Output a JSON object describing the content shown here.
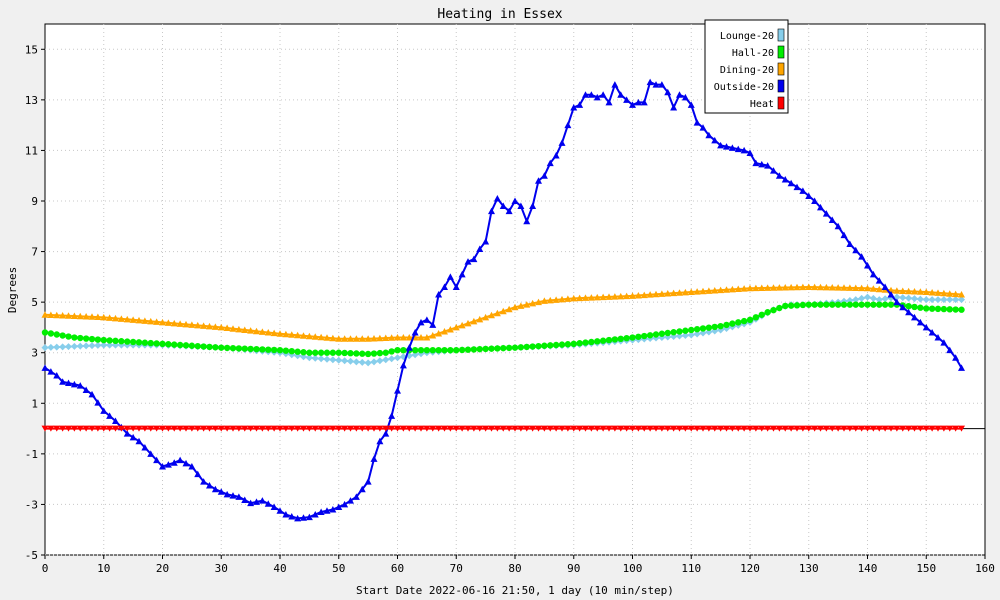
{
  "chart_data": {
    "type": "line",
    "title": "Heating in Essex",
    "xlabel": "Start Date 2022-06-16 21:50, 1 day (10 min/step)",
    "ylabel": "Degrees",
    "xlim": [
      0,
      160
    ],
    "ylim": [
      -5,
      16
    ],
    "x_ticks": [
      0,
      10,
      20,
      30,
      40,
      50,
      60,
      70,
      80,
      90,
      100,
      110,
      120,
      130,
      140,
      150,
      160
    ],
    "y_ticks": [
      -5,
      -3,
      -1,
      1,
      3,
      5,
      7,
      9,
      11,
      13,
      15
    ],
    "grid": true,
    "legend_position": "top-right",
    "series": [
      {
        "name": "Lounge-20",
        "color": "#87ceeb",
        "marker": "diamond",
        "points": [
          [
            0,
            3.2
          ],
          [
            5,
            3.25
          ],
          [
            10,
            3.3
          ],
          [
            20,
            3.3
          ],
          [
            30,
            3.2
          ],
          [
            40,
            3.0
          ],
          [
            45,
            2.8
          ],
          [
            50,
            2.7
          ],
          [
            55,
            2.6
          ],
          [
            60,
            2.8
          ],
          [
            65,
            3.0
          ],
          [
            70,
            3.1
          ],
          [
            80,
            3.2
          ],
          [
            90,
            3.3
          ],
          [
            100,
            3.5
          ],
          [
            110,
            3.7
          ],
          [
            115,
            3.9
          ],
          [
            120,
            4.2
          ],
          [
            124,
            4.7
          ],
          [
            127,
            4.9
          ],
          [
            130,
            4.9
          ],
          [
            135,
            5.0
          ],
          [
            138,
            5.1
          ],
          [
            140,
            5.2
          ],
          [
            142,
            5.1
          ],
          [
            145,
            5.2
          ],
          [
            150,
            5.1
          ],
          [
            156,
            5.1
          ]
        ]
      },
      {
        "name": "Hall-20",
        "color": "#00ee00",
        "marker": "circle",
        "points": [
          [
            0,
            3.8
          ],
          [
            5,
            3.6
          ],
          [
            10,
            3.5
          ],
          [
            20,
            3.35
          ],
          [
            30,
            3.2
          ],
          [
            40,
            3.1
          ],
          [
            45,
            3.0
          ],
          [
            50,
            3.0
          ],
          [
            55,
            2.95
          ],
          [
            58,
            3.0
          ],
          [
            60,
            3.1
          ],
          [
            65,
            3.1
          ],
          [
            70,
            3.1
          ],
          [
            80,
            3.2
          ],
          [
            90,
            3.35
          ],
          [
            100,
            3.6
          ],
          [
            105,
            3.75
          ],
          [
            110,
            3.9
          ],
          [
            115,
            4.05
          ],
          [
            120,
            4.3
          ],
          [
            123,
            4.6
          ],
          [
            126,
            4.85
          ],
          [
            130,
            4.9
          ],
          [
            135,
            4.9
          ],
          [
            140,
            4.9
          ],
          [
            145,
            4.9
          ],
          [
            150,
            4.75
          ],
          [
            156,
            4.7
          ]
        ]
      },
      {
        "name": "Dining-20",
        "color": "#ffa500",
        "marker": "triangle-up",
        "points": [
          [
            0,
            4.5
          ],
          [
            10,
            4.4
          ],
          [
            20,
            4.2
          ],
          [
            30,
            4.0
          ],
          [
            40,
            3.75
          ],
          [
            45,
            3.65
          ],
          [
            50,
            3.55
          ],
          [
            55,
            3.55
          ],
          [
            60,
            3.6
          ],
          [
            65,
            3.6
          ],
          [
            70,
            4.0
          ],
          [
            75,
            4.4
          ],
          [
            80,
            4.8
          ],
          [
            85,
            5.05
          ],
          [
            90,
            5.15
          ],
          [
            100,
            5.25
          ],
          [
            110,
            5.4
          ],
          [
            120,
            5.55
          ],
          [
            130,
            5.6
          ],
          [
            140,
            5.55
          ],
          [
            145,
            5.45
          ],
          [
            150,
            5.4
          ],
          [
            156,
            5.3
          ]
        ]
      },
      {
        "name": "Outside-20",
        "color": "#0000ee",
        "marker": "triangle-up",
        "points": [
          [
            0,
            2.4
          ],
          [
            2,
            2.1
          ],
          [
            3,
            1.85
          ],
          [
            6,
            1.7
          ],
          [
            8,
            1.35
          ],
          [
            10,
            0.7
          ],
          [
            12,
            0.3
          ],
          [
            14,
            -0.2
          ],
          [
            16,
            -0.5
          ],
          [
            18,
            -1.0
          ],
          [
            20,
            -1.5
          ],
          [
            22,
            -1.35
          ],
          [
            23,
            -1.25
          ],
          [
            25,
            -1.5
          ],
          [
            27,
            -2.1
          ],
          [
            29,
            -2.4
          ],
          [
            31,
            -2.6
          ],
          [
            33,
            -2.7
          ],
          [
            35,
            -2.95
          ],
          [
            37,
            -2.85
          ],
          [
            39,
            -3.1
          ],
          [
            41,
            -3.4
          ],
          [
            43,
            -3.55
          ],
          [
            45,
            -3.5
          ],
          [
            47,
            -3.3
          ],
          [
            49,
            -3.2
          ],
          [
            51,
            -3.0
          ],
          [
            53,
            -2.7
          ],
          [
            55,
            -2.1
          ],
          [
            56,
            -1.2
          ],
          [
            57,
            -0.5
          ],
          [
            58,
            -0.2
          ],
          [
            59,
            0.5
          ],
          [
            60,
            1.5
          ],
          [
            61,
            2.5
          ],
          [
            62,
            3.2
          ],
          [
            63,
            3.8
          ],
          [
            64,
            4.2
          ],
          [
            65,
            4.3
          ],
          [
            66,
            4.1
          ],
          [
            67,
            5.3
          ],
          [
            68,
            5.6
          ],
          [
            69,
            6.0
          ],
          [
            70,
            5.6
          ],
          [
            71,
            6.1
          ],
          [
            72,
            6.6
          ],
          [
            73,
            6.7
          ],
          [
            74,
            7.1
          ],
          [
            75,
            7.4
          ],
          [
            76,
            8.6
          ],
          [
            77,
            9.1
          ],
          [
            78,
            8.8
          ],
          [
            79,
            8.6
          ],
          [
            80,
            9.0
          ],
          [
            81,
            8.8
          ],
          [
            82,
            8.2
          ],
          [
            83,
            8.8
          ],
          [
            84,
            9.8
          ],
          [
            85,
            10.0
          ],
          [
            86,
            10.5
          ],
          [
            87,
            10.8
          ],
          [
            88,
            11.3
          ],
          [
            89,
            12.0
          ],
          [
            90,
            12.7
          ],
          [
            91,
            12.8
          ],
          [
            92,
            13.2
          ],
          [
            93,
            13.2
          ],
          [
            94,
            13.1
          ],
          [
            95,
            13.2
          ],
          [
            96,
            12.9
          ],
          [
            97,
            13.6
          ],
          [
            98,
            13.2
          ],
          [
            99,
            13.0
          ],
          [
            100,
            12.8
          ],
          [
            101,
            12.9
          ],
          [
            102,
            12.9
          ],
          [
            103,
            13.7
          ],
          [
            104,
            13.6
          ],
          [
            105,
            13.6
          ],
          [
            106,
            13.3
          ],
          [
            107,
            12.7
          ],
          [
            108,
            13.2
          ],
          [
            109,
            13.1
          ],
          [
            110,
            12.8
          ],
          [
            111,
            12.1
          ],
          [
            112,
            11.9
          ],
          [
            113,
            11.6
          ],
          [
            114,
            11.4
          ],
          [
            115,
            11.2
          ],
          [
            117,
            11.1
          ],
          [
            119,
            11.0
          ],
          [
            120,
            10.9
          ],
          [
            121,
            10.5
          ],
          [
            123,
            10.4
          ],
          [
            125,
            10.0
          ],
          [
            127,
            9.7
          ],
          [
            129,
            9.4
          ],
          [
            131,
            9.0
          ],
          [
            133,
            8.5
          ],
          [
            135,
            8.0
          ],
          [
            137,
            7.3
          ],
          [
            139,
            6.8
          ],
          [
            141,
            6.1
          ],
          [
            143,
            5.6
          ],
          [
            145,
            5.0
          ],
          [
            147,
            4.6
          ],
          [
            149,
            4.2
          ],
          [
            151,
            3.8
          ],
          [
            153,
            3.4
          ],
          [
            155,
            2.8
          ],
          [
            156,
            2.4
          ]
        ]
      },
      {
        "name": "Heat",
        "color": "#ff0000",
        "marker": "triangle-down",
        "points": [
          [
            0,
            0
          ],
          [
            156,
            0
          ]
        ]
      }
    ]
  }
}
